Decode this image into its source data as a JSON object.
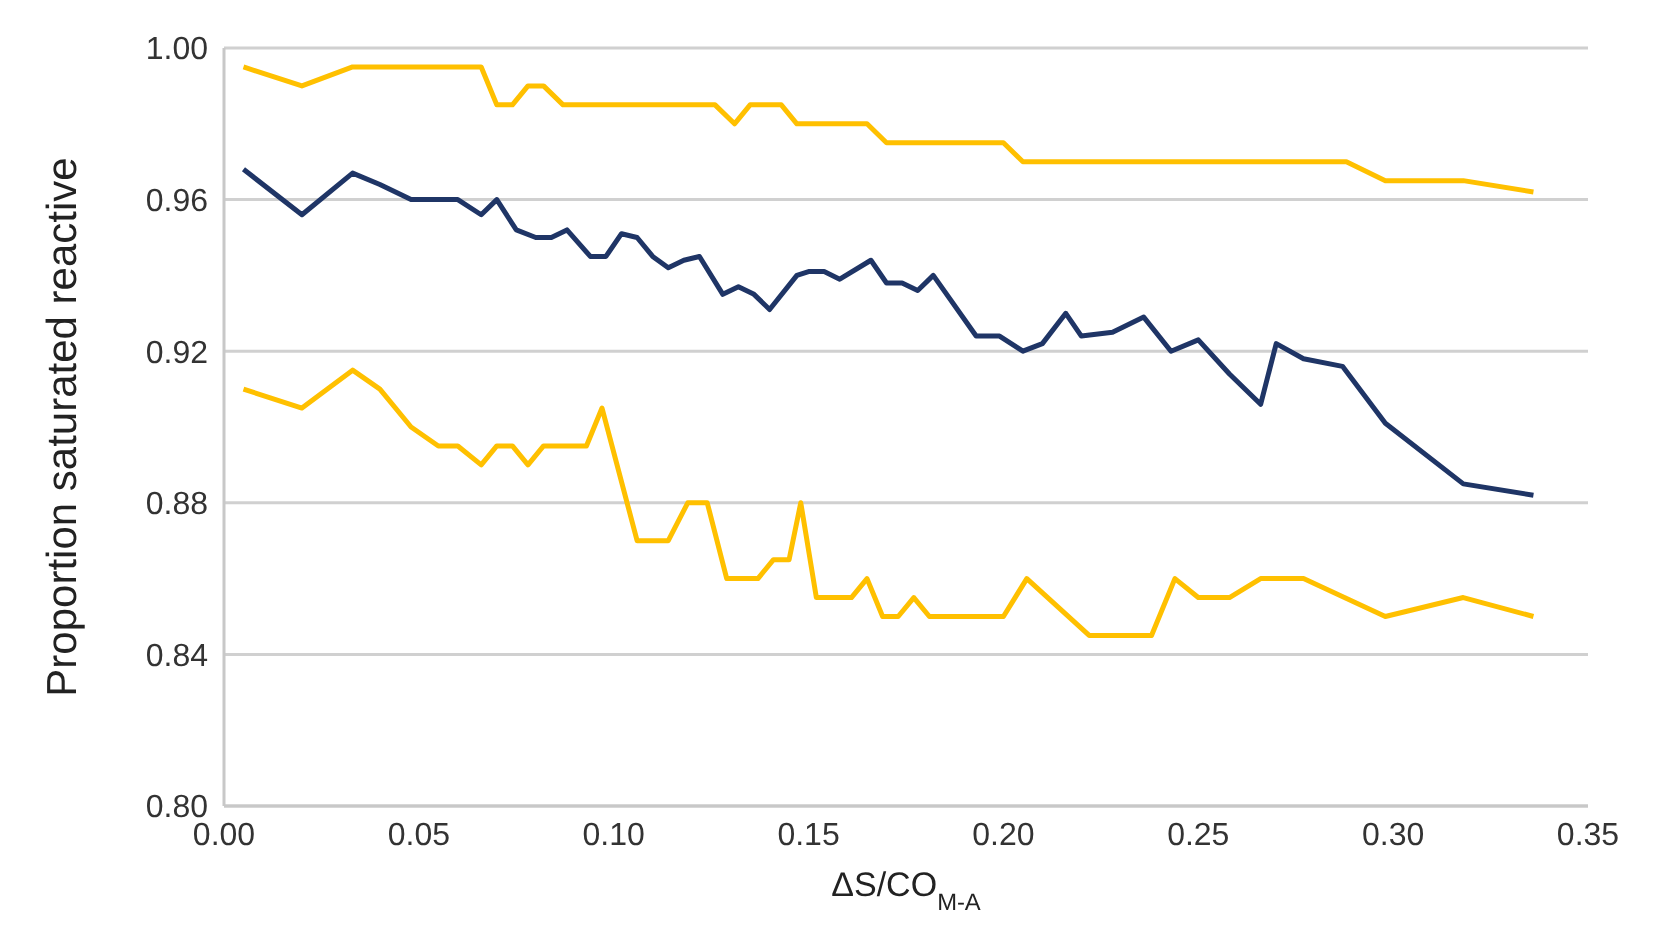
{
  "chart_data": {
    "type": "line",
    "xlabel": "ΔS/CO$_{M-A}$",
    "ylabel": "Proportion saturated reactive",
    "xlim": [
      0,
      0.35
    ],
    "ylim": [
      0.8,
      1.0
    ],
    "xticks": [
      {
        "value": 0,
        "label": "0.00"
      },
      {
        "value": 0.05,
        "label": "0.05"
      },
      {
        "value": 0.1,
        "label": "0.10"
      },
      {
        "value": 0.15,
        "label": "0.15"
      },
      {
        "value": 0.2,
        "label": "0.20"
      },
      {
        "value": 0.25,
        "label": "0.25"
      },
      {
        "value": 0.3,
        "label": "0.30"
      },
      {
        "value": 0.35,
        "label": "0.35"
      }
    ],
    "yticks": [
      {
        "value": 0.8,
        "label": "0.80"
      },
      {
        "value": 0.84,
        "label": "0.84"
      },
      {
        "value": 0.88,
        "label": "0.88"
      },
      {
        "value": 0.92,
        "label": "0.92"
      },
      {
        "value": 0.96,
        "label": "0.96"
      },
      {
        "value": 1.0,
        "label": "1.00"
      }
    ],
    "grid": "y",
    "marker": "none",
    "line_style": "solid",
    "series": [
      {
        "color": "#ffc000",
        "x": [
          0.005,
          0.02,
          0.033,
          0.066,
          0.07,
          0.074,
          0.078,
          0.082,
          0.087,
          0.126,
          0.131,
          0.135,
          0.143,
          0.147,
          0.165,
          0.17,
          0.2,
          0.205,
          0.288,
          0.298,
          0.318,
          0.336
        ],
        "values": [
          0.995,
          0.99,
          0.995,
          0.995,
          0.985,
          0.985,
          0.99,
          0.99,
          0.985,
          0.985,
          0.98,
          0.985,
          0.985,
          0.98,
          0.98,
          0.975,
          0.975,
          0.97,
          0.97,
          0.965,
          0.965,
          0.962
        ]
      },
      {
        "color": "#1f3566",
        "x": [
          0.005,
          0.02,
          0.033,
          0.04,
          0.048,
          0.06,
          0.066,
          0.07,
          0.075,
          0.08,
          0.084,
          0.088,
          0.094,
          0.098,
          0.102,
          0.106,
          0.11,
          0.114,
          0.118,
          0.122,
          0.128,
          0.132,
          0.136,
          0.14,
          0.147,
          0.15,
          0.154,
          0.158,
          0.166,
          0.17,
          0.174,
          0.178,
          0.182,
          0.193,
          0.199,
          0.205,
          0.21,
          0.216,
          0.22,
          0.228,
          0.236,
          0.243,
          0.25,
          0.258,
          0.266,
          0.27,
          0.277,
          0.287,
          0.298,
          0.318,
          0.336
        ],
        "values": [
          0.968,
          0.956,
          0.967,
          0.964,
          0.96,
          0.96,
          0.956,
          0.96,
          0.952,
          0.95,
          0.95,
          0.952,
          0.945,
          0.945,
          0.951,
          0.95,
          0.945,
          0.942,
          0.944,
          0.945,
          0.935,
          0.937,
          0.935,
          0.931,
          0.94,
          0.941,
          0.941,
          0.939,
          0.944,
          0.938,
          0.938,
          0.936,
          0.94,
          0.924,
          0.924,
          0.92,
          0.922,
          0.93,
          0.924,
          0.925,
          0.929,
          0.92,
          0.923,
          0.914,
          0.906,
          0.922,
          0.918,
          0.916,
          0.901,
          0.885,
          0.882
        ]
      },
      {
        "color": "#ffc000",
        "x": [
          0.005,
          0.02,
          0.033,
          0.04,
          0.048,
          0.055,
          0.06,
          0.066,
          0.07,
          0.074,
          0.078,
          0.082,
          0.093,
          0.097,
          0.106,
          0.114,
          0.119,
          0.124,
          0.129,
          0.137,
          0.141,
          0.145,
          0.148,
          0.152,
          0.161,
          0.165,
          0.169,
          0.173,
          0.177,
          0.181,
          0.2,
          0.206,
          0.222,
          0.238,
          0.244,
          0.25,
          0.258,
          0.266,
          0.277,
          0.298,
          0.318,
          0.336
        ],
        "values": [
          0.91,
          0.905,
          0.915,
          0.91,
          0.9,
          0.895,
          0.895,
          0.89,
          0.895,
          0.895,
          0.89,
          0.895,
          0.895,
          0.905,
          0.87,
          0.87,
          0.88,
          0.88,
          0.86,
          0.86,
          0.865,
          0.865,
          0.88,
          0.855,
          0.855,
          0.86,
          0.85,
          0.85,
          0.855,
          0.85,
          0.85,
          0.86,
          0.845,
          0.845,
          0.86,
          0.855,
          0.855,
          0.86,
          0.86,
          0.85,
          0.855,
          0.85
        ]
      }
    ]
  }
}
